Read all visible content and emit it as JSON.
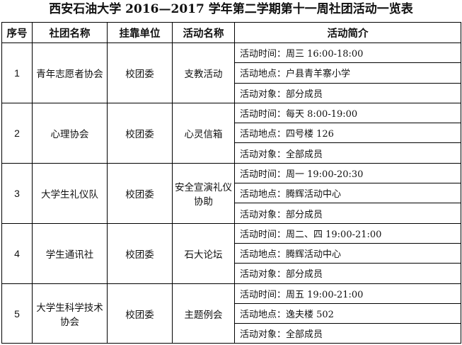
{
  "title": "西安石油大学 2016—2017 学年第二学期第十一周社团活动一览表",
  "headers": [
    "序号",
    "社团名称",
    "挂靠单位",
    "活动名称",
    "活动简介"
  ],
  "rows": [
    {
      "no": "1",
      "club": "青年志愿者协会",
      "unit": "校团委",
      "activity": "支教活动",
      "details": [
        "活动时间：周三 16:00-18:00",
        "活动地点：户县青羊寨小学",
        "活动对象：部分成员"
      ]
    },
    {
      "no": "2",
      "club": "心理协会",
      "unit": "校团委",
      "activity": "心灵信箱",
      "details": [
        "活动时间：每天 8:00-19:00",
        "活动地点：四号楼 126",
        "活动对象：全部成员"
      ]
    },
    {
      "no": "3",
      "club": "大学生礼仪队",
      "unit": "校团委",
      "activity": "安全宣演礼仪协助",
      "details": [
        "活动时间：周一 19:00-20:30",
        "活动地点：腾辉活动中心",
        "活动对象：部分成员"
      ]
    },
    {
      "no": "4",
      "club": "学生通讯社",
      "unit": "校团委",
      "activity": "石大论坛",
      "details": [
        "活动时间：周二、四 19:00-21:00",
        "活动地点：腾辉活动中心",
        "活动对象：部分成员"
      ]
    },
    {
      "no": "5",
      "club": "大学生科学技术协会",
      "unit": "校团委",
      "activity": "主题例会",
      "details": [
        "活动时间：周五 19:00-21:00",
        "活动地点：逸夫楼 502",
        "活动对象：全部成员"
      ]
    }
  ]
}
